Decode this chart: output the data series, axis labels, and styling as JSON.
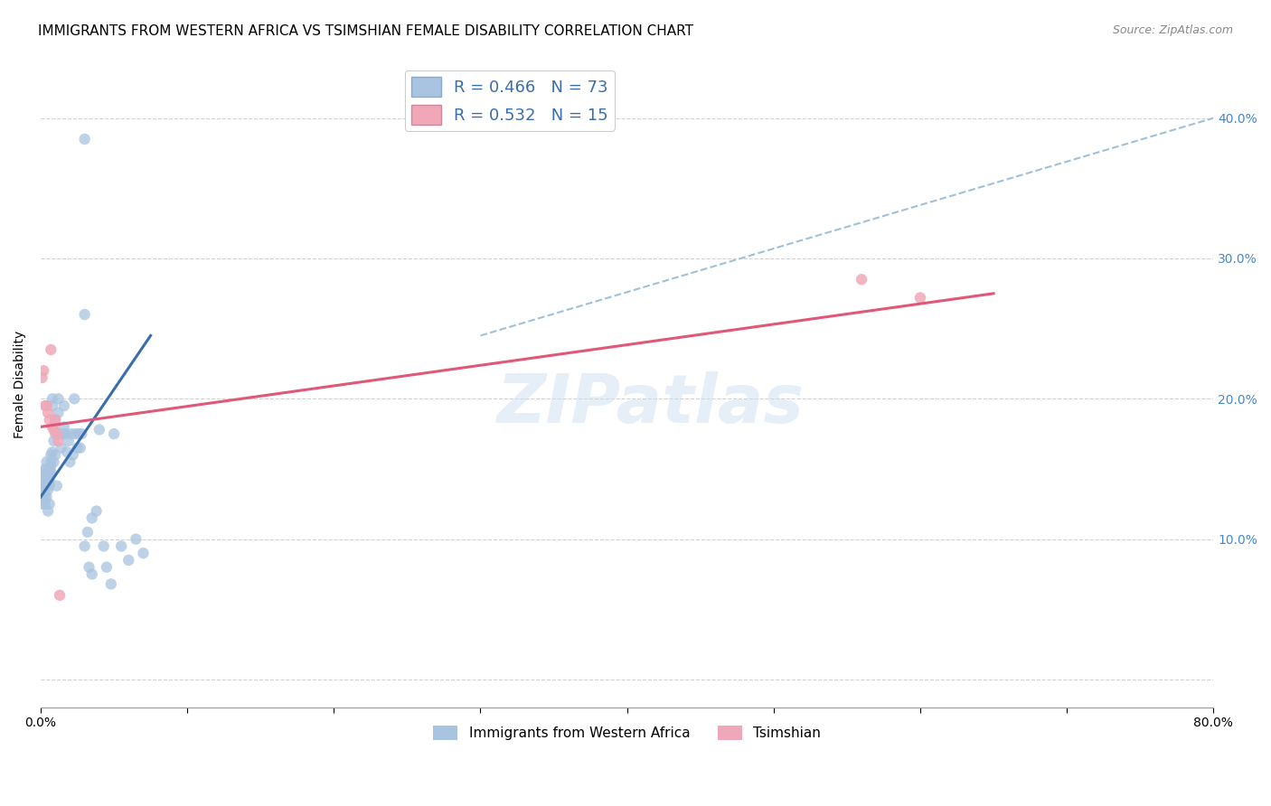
{
  "title": "IMMIGRANTS FROM WESTERN AFRICA VS TSIMSHIAN FEMALE DISABILITY CORRELATION CHART",
  "source": "Source: ZipAtlas.com",
  "ylabel": "Female Disability",
  "xlim": [
    0.0,
    0.8
  ],
  "ylim": [
    -0.02,
    0.44
  ],
  "blue_color": "#a8c4e0",
  "pink_color": "#f0a8b8",
  "blue_line_color": "#3a6eaa",
  "pink_line_color": "#e05878",
  "dashed_line_color": "#a0c0d8",
  "right_ytick_color": "#4488cc",
  "legend_R_blue": "R = 0.466",
  "legend_N_blue": "N = 73",
  "legend_R_pink": "R = 0.532",
  "legend_N_pink": "N = 15",
  "legend_label_blue": "Immigrants from Western Africa",
  "legend_label_pink": "Tsimshian",
  "watermark": "ZIPatlas",
  "blue_x": [
    0.001,
    0.001,
    0.001,
    0.002,
    0.002,
    0.002,
    0.002,
    0.003,
    0.003,
    0.003,
    0.003,
    0.003,
    0.004,
    0.004,
    0.004,
    0.004,
    0.005,
    0.005,
    0.005,
    0.005,
    0.005,
    0.006,
    0.006,
    0.006,
    0.006,
    0.007,
    0.007,
    0.007,
    0.007,
    0.008,
    0.008,
    0.008,
    0.009,
    0.009,
    0.01,
    0.01,
    0.01,
    0.011,
    0.012,
    0.012,
    0.013,
    0.014,
    0.015,
    0.016,
    0.016,
    0.017,
    0.018,
    0.019,
    0.02,
    0.021,
    0.022,
    0.023,
    0.024,
    0.025,
    0.026,
    0.027,
    0.028,
    0.03,
    0.032,
    0.033,
    0.035,
    0.038,
    0.04,
    0.043,
    0.045,
    0.048,
    0.05,
    0.055,
    0.06,
    0.065,
    0.07,
    0.03,
    0.035
  ],
  "blue_y": [
    0.145,
    0.135,
    0.125,
    0.148,
    0.138,
    0.13,
    0.145,
    0.14,
    0.128,
    0.15,
    0.132,
    0.125,
    0.138,
    0.143,
    0.13,
    0.155,
    0.14,
    0.135,
    0.145,
    0.12,
    0.148,
    0.138,
    0.148,
    0.142,
    0.125,
    0.152,
    0.155,
    0.16,
    0.148,
    0.195,
    0.2,
    0.162,
    0.17,
    0.155,
    0.185,
    0.175,
    0.16,
    0.138,
    0.2,
    0.19,
    0.175,
    0.165,
    0.175,
    0.18,
    0.195,
    0.175,
    0.162,
    0.17,
    0.155,
    0.175,
    0.16,
    0.2,
    0.175,
    0.165,
    0.175,
    0.165,
    0.175,
    0.095,
    0.105,
    0.08,
    0.075,
    0.12,
    0.178,
    0.095,
    0.08,
    0.068,
    0.175,
    0.095,
    0.085,
    0.1,
    0.09,
    0.26,
    0.115
  ],
  "blue_outlier_x": [
    0.03
  ],
  "blue_outlier_y": [
    0.385
  ],
  "pink_x": [
    0.001,
    0.002,
    0.003,
    0.004,
    0.005,
    0.006,
    0.007,
    0.008,
    0.009,
    0.01,
    0.011,
    0.012,
    0.013,
    0.56,
    0.6
  ],
  "pink_y": [
    0.215,
    0.22,
    0.195,
    0.195,
    0.19,
    0.185,
    0.235,
    0.18,
    0.178,
    0.185,
    0.175,
    0.17,
    0.06,
    0.285,
    0.272
  ],
  "blue_trend_x": [
    0.0,
    0.075
  ],
  "blue_trend_y": [
    0.13,
    0.245
  ],
  "pink_trend_x": [
    0.0,
    0.65
  ],
  "pink_trend_y": [
    0.18,
    0.275
  ],
  "dashed_trend_x": [
    0.3,
    0.8
  ],
  "dashed_trend_y": [
    0.245,
    0.4
  ],
  "marker_size": 80,
  "title_fontsize": 11,
  "axis_label_fontsize": 10,
  "tick_fontsize": 10
}
